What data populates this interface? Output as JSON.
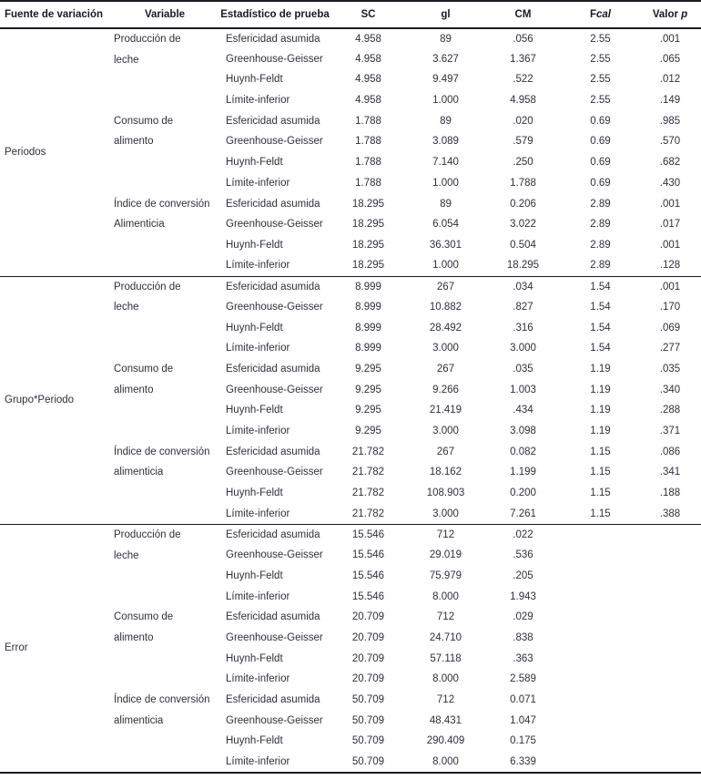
{
  "colors": {
    "text": "#2f2f3f",
    "header_text": "#191927",
    "rule": "#1b1b28",
    "background": "#ffffff"
  },
  "header": {
    "col_source": "Fuente de variación",
    "col_variable": "Variable",
    "col_test": "Estadístico de prueba",
    "col_sc": "SC",
    "col_gl": "gl",
    "col_cm": "CM",
    "col_fcal_roman": "F",
    "col_fcal_italic": "cal",
    "col_p_roman": "Valor ",
    "col_p_italic": "p"
  },
  "sections": [
    {
      "source": "Periodos",
      "blocks": [
        {
          "variable": [
            "Producción de",
            "leche"
          ],
          "rows": [
            [
              "Esfericidad asumida",
              "4.958",
              "89",
              ".056",
              "2.55",
              ".001"
            ],
            [
              "Greenhouse-Geisser",
              "4.958",
              "3.627",
              "1.367",
              "2.55",
              ".065"
            ],
            [
              "Huynh-Feldt",
              "4.958",
              "9.497",
              ".522",
              "2.55",
              ".012"
            ],
            [
              "Límite-inferior",
              "4.958",
              "1.000",
              "4.958",
              "2.55",
              ".149"
            ]
          ]
        },
        {
          "variable": [
            "Consumo de",
            "alimento"
          ],
          "rows": [
            [
              "Esfericidad asumida",
              "1.788",
              "89",
              ".020",
              "0.69",
              ".985"
            ],
            [
              "Greenhouse-Geisser",
              "1.788",
              "3.089",
              ".579",
              "0.69",
              ".570"
            ],
            [
              "Huynh-Feldt",
              "1.788",
              "7.140",
              ".250",
              "0.69",
              ".682"
            ],
            [
              "Límite-inferior",
              "1.788",
              "1.000",
              "1.788",
              "0.69",
              ".430"
            ]
          ]
        },
        {
          "variable": [
            "Índice de conversión",
            "Alimenticia"
          ],
          "rows": [
            [
              "Esfericidad asumida",
              "18.295",
              "89",
              "0.206",
              "2.89",
              ".001"
            ],
            [
              "Greenhouse-Geisser",
              "18.295",
              "6.054",
              "3.022",
              "2.89",
              ".017"
            ],
            [
              "Huynh-Feldt",
              "18.295",
              "36.301",
              "0.504",
              "2.89",
              ".001"
            ],
            [
              "Límite-inferior",
              "18.295",
              "1.000",
              "18.295",
              "2.89",
              ".128"
            ]
          ]
        }
      ]
    },
    {
      "source": "Grupo*Periodo",
      "blocks": [
        {
          "variable": [
            "Producción de",
            "leche"
          ],
          "rows": [
            [
              "Esfericidad asumida",
              "8.999",
              "267",
              ".034",
              "1.54",
              ".001"
            ],
            [
              "Greenhouse-Geisser",
              "8.999",
              "10.882",
              ".827",
              "1.54",
              ".170"
            ],
            [
              "Huynh-Feldt",
              "8.999",
              "28.492",
              ".316",
              "1.54",
              ".069"
            ],
            [
              "Límite-inferior",
              "8.999",
              "3.000",
              "3.000",
              "1.54",
              ".277"
            ]
          ]
        },
        {
          "variable": [
            "Consumo de",
            "alimento"
          ],
          "rows": [
            [
              "Esfericidad asumida",
              "9.295",
              "267",
              ".035",
              "1.19",
              ".035"
            ],
            [
              "Greenhouse-Geisser",
              "9.295",
              "9.266",
              "1.003",
              "1.19",
              ".340"
            ],
            [
              "Huynh-Feldt",
              "9.295",
              "21.419",
              ".434",
              "1.19",
              ".288"
            ],
            [
              "Límite-inferior",
              "9.295",
              "3.000",
              "3.098",
              "1.19",
              ".371"
            ]
          ]
        },
        {
          "variable": [
            "Índice de conversión",
            "alimenticia"
          ],
          "rows": [
            [
              "Esfericidad asumida",
              "21.782",
              "267",
              "0.082",
              "1.15",
              ".086"
            ],
            [
              "Greenhouse-Geisser",
              "21.782",
              "18.162",
              "1.199",
              "1.15",
              ".341"
            ],
            [
              "Huynh-Feldt",
              "21.782",
              "108.903",
              "0.200",
              "1.15",
              ".188"
            ],
            [
              "Límite-inferior",
              "21.782",
              "3.000",
              "7.261",
              "1.15",
              ".388"
            ]
          ]
        }
      ]
    },
    {
      "source": "Error",
      "blocks": [
        {
          "variable": [
            "Producción de",
            "leche"
          ],
          "rows": [
            [
              "Esfericidad asumida",
              "15.546",
              "712",
              ".022",
              "",
              ""
            ],
            [
              "Greenhouse-Geisser",
              "15.546",
              "29.019",
              ".536",
              "",
              ""
            ],
            [
              "Huynh-Feldt",
              "15.546",
              "75.979",
              ".205",
              "",
              ""
            ],
            [
              "Límite-inferior",
              "15.546",
              "8.000",
              "1.943",
              "",
              ""
            ]
          ]
        },
        {
          "variable": [
            "Consumo de",
            "alimento"
          ],
          "rows": [
            [
              "Esfericidad asumida",
              "20.709",
              "712",
              ".029",
              "",
              ""
            ],
            [
              "Greenhouse-Geisser",
              "20.709",
              "24.710",
              ".838",
              "",
              ""
            ],
            [
              "Huynh-Feldt",
              "20.709",
              "57.118",
              ".363",
              "",
              ""
            ],
            [
              "Límite-inferior",
              "20.709",
              "8.000",
              "2.589",
              "",
              ""
            ]
          ]
        },
        {
          "variable": [
            "Índice de conversión",
            "alimenticia"
          ],
          "rows": [
            [
              "Esfericidad asumida",
              "50.709",
              "712",
              "0.071",
              "",
              ""
            ],
            [
              "Greenhouse-Geisser",
              "50.709",
              "48.431",
              "1.047",
              "",
              ""
            ],
            [
              "Huynh-Feldt",
              "50.709",
              "290.409",
              "0.175",
              "",
              ""
            ],
            [
              "Límite-inferior",
              "50.709",
              "8.000",
              "6.339",
              "",
              ""
            ]
          ]
        }
      ]
    }
  ]
}
